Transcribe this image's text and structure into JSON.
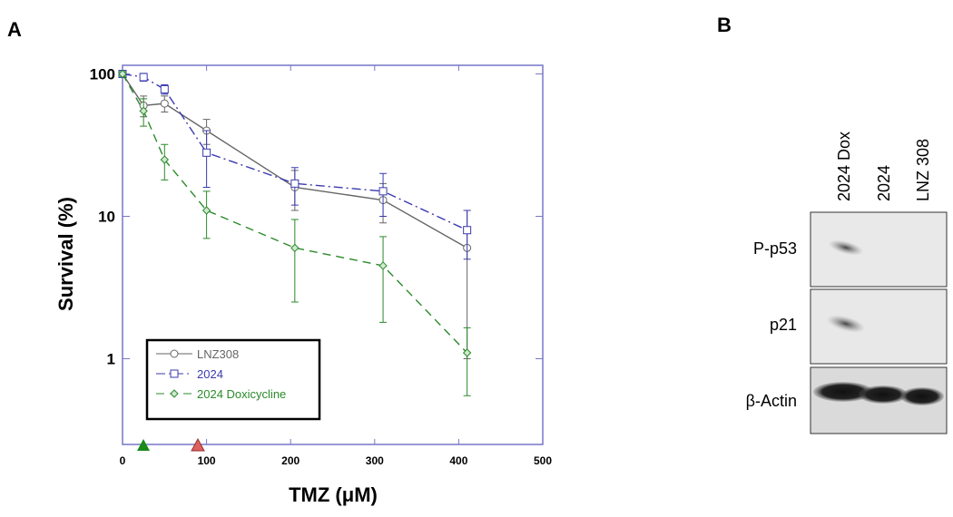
{
  "panel_a": {
    "letter": "A"
  },
  "panel_b": {
    "letter": "B",
    "lanes": [
      "2024 Dox",
      "2024",
      "LNZ 308"
    ],
    "rows": [
      "P-p53",
      "p21",
      "β-Actin"
    ]
  },
  "chart_data": {
    "type": "line",
    "xlabel": "TMZ (μM)",
    "ylabel": "Survival (%)",
    "xlim": [
      0,
      500
    ],
    "xticks": [
      0,
      100,
      200,
      300,
      400,
      500
    ],
    "ylim": [
      0.25,
      115
    ],
    "yticks": [
      1,
      10,
      100
    ],
    "yscale": "log",
    "series": [
      {
        "name": "LNZ308",
        "color": "#666666",
        "linestyle": "solid",
        "marker": "circle",
        "x": [
          0,
          25,
          50,
          100,
          205,
          310,
          410
        ],
        "values": [
          100,
          60,
          62,
          40,
          16,
          13,
          6
        ],
        "errors": [
          4,
          10,
          8,
          8,
          5,
          4,
          5
        ]
      },
      {
        "name": "2024",
        "color": "#3a3ab0",
        "linestyle": "dashdot",
        "marker": "square",
        "x": [
          0,
          25,
          50,
          100,
          205,
          310,
          410
        ],
        "values": [
          100,
          95,
          78,
          28,
          17,
          15,
          8
        ],
        "errors": [
          4,
          6,
          6,
          12,
          5,
          5,
          3
        ]
      },
      {
        "name": "2024 Doxicycline",
        "color": "#2a8a2a",
        "linestyle": "dash",
        "marker": "diamond",
        "x": [
          0,
          25,
          50,
          100,
          205,
          310,
          410
        ],
        "values": [
          100,
          55,
          25,
          11,
          6,
          4.5,
          1.1
        ],
        "errors": [
          4,
          12,
          7,
          4,
          3.5,
          2.7,
          0.55
        ]
      }
    ]
  }
}
